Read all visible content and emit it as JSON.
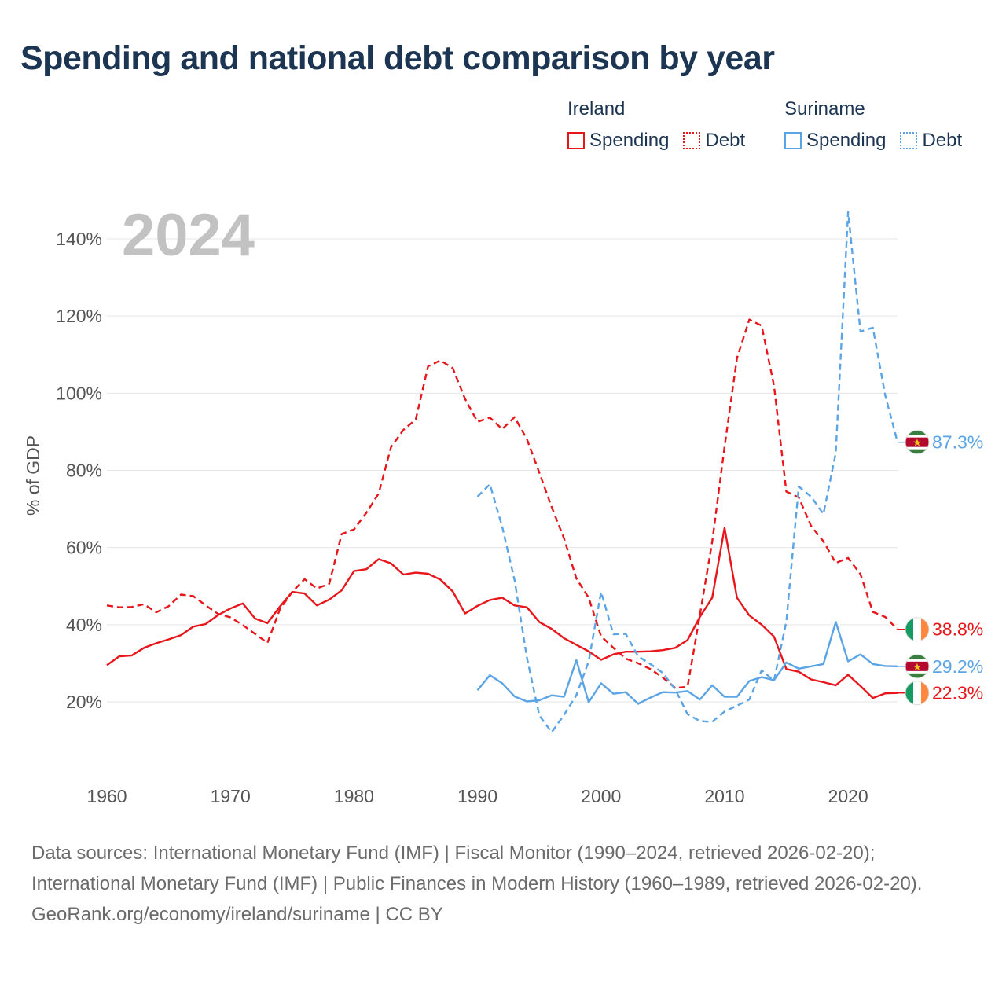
{
  "title": "Spending and national debt comparison by year",
  "legend": {
    "groups": [
      {
        "country": "Ireland",
        "color": "#e8161b",
        "items": [
          {
            "label": "Spending",
            "style": "solid"
          },
          {
            "label": "Debt",
            "style": "dotted"
          }
        ]
      },
      {
        "country": "Suriname",
        "color": "#5ba4e5",
        "items": [
          {
            "label": "Spending",
            "style": "solid"
          },
          {
            "label": "Debt",
            "style": "dotted"
          }
        ]
      }
    ]
  },
  "footer": {
    "sources": "Data sources: International Monetary Fund (IMF) | Fiscal Monitor (1990–2024, retrieved 2026-02-20); International Monetary Fund (IMF) | Public Finances in Modern History (1960–1989, retrieved 2026-02-20).",
    "credit": "GeoRank.org/economy/ireland/suriname | CC BY"
  },
  "chart_data": {
    "type": "line",
    "title": "Spending and national debt comparison by year",
    "year_label": "2024",
    "ylabel": "% of GDP",
    "xlabel": "",
    "xlim": [
      1960,
      2024
    ],
    "ylim": [
      0,
      150
    ],
    "yticks": [
      20,
      40,
      60,
      80,
      100,
      120,
      140
    ],
    "ytick_labels": [
      "20%",
      "40%",
      "60%",
      "80%",
      "100%",
      "120%",
      "140%"
    ],
    "xticks": [
      1960,
      1970,
      1980,
      1990,
      2000,
      2010,
      2020
    ],
    "xtick_labels": [
      "1960",
      "1970",
      "1980",
      "1990",
      "2000",
      "2010",
      "2020"
    ],
    "grid": true,
    "series": [
      {
        "name": "Ireland Debt",
        "country": "Ireland",
        "color": "#e8161b",
        "dash": true,
        "start": 1960,
        "values": [
          45.0,
          44.5,
          44.6,
          45.3,
          43.2,
          44.8,
          47.8,
          47.4,
          45.0,
          42.8,
          41.9,
          39.9,
          37.6,
          35.3,
          44.0,
          48.5,
          51.8,
          49.4,
          50.6,
          63.5,
          64.7,
          69.0,
          74.0,
          86.0,
          90.5,
          93.2,
          107.0,
          108.5,
          106.5,
          98.5,
          92.6,
          93.7,
          90.7,
          93.8,
          88.1,
          79.4,
          70.5,
          62.4,
          52.0,
          47.0,
          37.0,
          34.0,
          31.2,
          30.0,
          28.5,
          26.3,
          23.6,
          23.9,
          42.5,
          61.5,
          86.1,
          109.1,
          119.1,
          117.5,
          102.0,
          74.5,
          73.0,
          65.6,
          61.6,
          56.0,
          57.3,
          53.1,
          43.3,
          42.0,
          38.8
        ],
        "end_label": "38.8%"
      },
      {
        "name": "Ireland Spending",
        "country": "Ireland",
        "color": "#e8161b",
        "dash": false,
        "start": 1960,
        "values": [
          29.5,
          31.8,
          32.0,
          34.0,
          35.2,
          36.2,
          37.3,
          39.5,
          40.2,
          42.5,
          44.2,
          45.5,
          41.6,
          40.4,
          44.7,
          48.5,
          48.1,
          45.0,
          46.5,
          48.9,
          53.9,
          54.4,
          57.0,
          55.9,
          53.0,
          53.5,
          53.2,
          51.7,
          48.6,
          42.9,
          44.9,
          46.4,
          47.0,
          45.0,
          44.5,
          40.7,
          38.9,
          36.5,
          34.8,
          33.1,
          30.9,
          32.3,
          33.0,
          33.0,
          33.1,
          33.4,
          34.0,
          36.0,
          42.0,
          47.0,
          65.1,
          47.0,
          42.4,
          40.0,
          36.9,
          28.5,
          27.8,
          25.8,
          25.1,
          24.3,
          27.0,
          24.1,
          21.0,
          22.2,
          22.3
        ],
        "end_label": "22.3%"
      },
      {
        "name": "Suriname Debt",
        "country": "Suriname",
        "color": "#5ba4e5",
        "dash": true,
        "start": 1990,
        "values": [
          73.2,
          76.4,
          65.4,
          51.6,
          31.5,
          16.5,
          12.1,
          16.6,
          21.7,
          30.5,
          48.5,
          37.5,
          37.6,
          31.8,
          29.8,
          27.5,
          23.3,
          16.8,
          15.0,
          14.8,
          17.5,
          19.0,
          20.6,
          28.2,
          25.5,
          40.8,
          75.8,
          73.2,
          68.7,
          84.5,
          147.0,
          116.0,
          117.0,
          99.5,
          87.3
        ],
        "end_label": "87.3%"
      },
      {
        "name": "Suriname Spending",
        "country": "Suriname",
        "color": "#5ba4e5",
        "dash": false,
        "start": 1990,
        "values": [
          23.0,
          26.9,
          24.8,
          21.4,
          20.1,
          20.4,
          21.7,
          21.3,
          30.8,
          19.9,
          24.8,
          22.1,
          22.5,
          19.5,
          21.1,
          22.5,
          22.4,
          22.8,
          20.6,
          24.3,
          21.3,
          21.3,
          25.4,
          26.4,
          25.6,
          30.2,
          28.6,
          29.2,
          29.8,
          40.7,
          30.5,
          32.3,
          29.8,
          29.3,
          29.2
        ],
        "end_label": "29.2%"
      }
    ]
  }
}
